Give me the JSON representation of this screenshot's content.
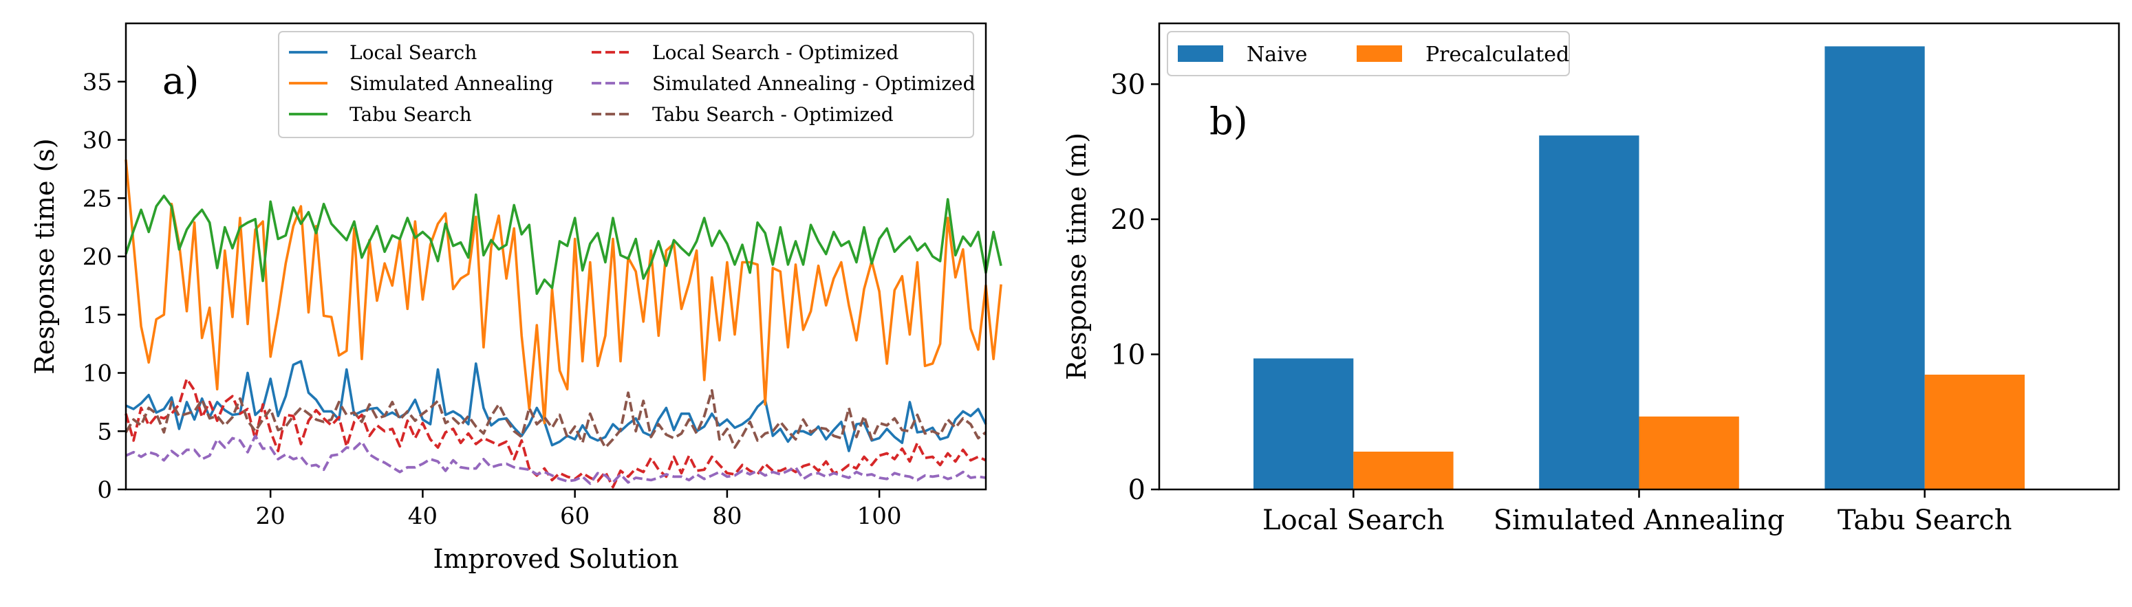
{
  "chart_data": [
    {
      "type": "line",
      "panel_label": "a)",
      "xlabel": "Improved Solution",
      "ylabel": "Response time (s)",
      "xlim": [
        1,
        114
      ],
      "ylim": [
        0,
        40
      ],
      "xticks": [
        20,
        40,
        60,
        80,
        100
      ],
      "yticks": [
        0,
        5,
        10,
        15,
        20,
        25,
        30,
        35
      ],
      "grid": false,
      "legend_position": "top-right",
      "x_start": 1,
      "series": [
        {
          "name": "Local Search",
          "color": "#1f77b4",
          "dash": "solid",
          "values": [
            7.2,
            6.9,
            7.4,
            8.1,
            6.6,
            6.9,
            7.9,
            5.2,
            7.5,
            6.0,
            7.8,
            6.2,
            7.5,
            6.8,
            6.4,
            6.5,
            10.0,
            6.4,
            7.0,
            9.5,
            6.3,
            8.0,
            10.7,
            11.0,
            8.3,
            7.7,
            6.7,
            6.7,
            6.0,
            10.3,
            6.4,
            6.7,
            6.9,
            7.0,
            6.3,
            6.6,
            6.2,
            6.6,
            7.7,
            6.0,
            5.6,
            10.3,
            6.4,
            6.7,
            6.3,
            5.6,
            10.8,
            7.0,
            5.5,
            6.0,
            6.1,
            5.3,
            4.6,
            5.6,
            7.0,
            5.8,
            3.8,
            4.1,
            4.6,
            4.3,
            5.5,
            4.5,
            4.2,
            4.5,
            5.6,
            5.0,
            5.6,
            6.1,
            4.9,
            4.6,
            6.0,
            7.0,
            5.1,
            6.5,
            6.5,
            5.0,
            5.4,
            6.5,
            5.5,
            6.0,
            5.3,
            5.6,
            6.1,
            7.1,
            7.7,
            4.6,
            5.2,
            4.1,
            5.0,
            5.0,
            4.7,
            5.4,
            4.3,
            5.1,
            5.8,
            3.3,
            5.6,
            5.7,
            4.2,
            4.4,
            5.2,
            4.5,
            4.0,
            7.5,
            4.9,
            5.0,
            5.3,
            4.3,
            4.5,
            6.0,
            6.7,
            6.3,
            6.9,
            5.6
          ]
        },
        {
          "name": "Simulated Annealing",
          "color": "#ff7f0e",
          "dash": "solid",
          "values": [
            28.3,
            21.1,
            14.0,
            10.9,
            14.6,
            15.0,
            24.5,
            21.1,
            15.3,
            22.9,
            13.0,
            15.6,
            8.6,
            20.5,
            14.8,
            23.3,
            14.2,
            22.3,
            23.0,
            11.4,
            15.1,
            19.4,
            22.6,
            24.3,
            15.2,
            22.6,
            14.9,
            14.8,
            11.5,
            11.9,
            22.4,
            11.2,
            21.4,
            16.2,
            19.4,
            17.5,
            21.5,
            15.5,
            23.0,
            16.3,
            21.0,
            22.8,
            23.7,
            17.2,
            18.1,
            18.5,
            23.4,
            12.2,
            20.8,
            23.5,
            18.1,
            22.4,
            13.2,
            6.9,
            14.1,
            5.7,
            17.2,
            10.2,
            8.6,
            21.5,
            11.0,
            19.5,
            10.6,
            13.2,
            21.5,
            11.0,
            19.9,
            18.7,
            14.4,
            20.5,
            13.2,
            20.5,
            21.1,
            15.5,
            17.7,
            20.5,
            9.4,
            18.2,
            12.8,
            19.5,
            13.3,
            19.5,
            19.5,
            19.3,
            7.3,
            19.0,
            18.7,
            12.2,
            19.3,
            13.7,
            15.3,
            19.2,
            15.8,
            18.1,
            19.5,
            15.8,
            12.8,
            17.2,
            19.6,
            17.0,
            10.8,
            17.1,
            18.3,
            13.3,
            19.5,
            10.6,
            10.8,
            12.5,
            23.3,
            18.2,
            20.6,
            13.8,
            12.0,
            17.5,
            11.2,
            17.6
          ]
        },
        {
          "name": "Tabu Search",
          "color": "#2ca02c",
          "dash": "solid",
          "values": [
            20.2,
            22.2,
            24.0,
            22.1,
            24.3,
            25.2,
            24.3,
            20.6,
            22.3,
            23.3,
            24.0,
            22.9,
            19.0,
            22.5,
            20.7,
            22.5,
            22.9,
            23.2,
            17.9,
            24.7,
            21.5,
            21.8,
            24.2,
            22.8,
            23.8,
            22.0,
            24.5,
            22.8,
            22.1,
            21.4,
            23.0,
            19.9,
            21.3,
            22.6,
            20.4,
            21.8,
            21.5,
            23.3,
            21.6,
            22.1,
            21.5,
            19.6,
            22.8,
            20.9,
            21.2,
            19.9,
            25.3,
            20.1,
            21.4,
            20.6,
            21.0,
            24.4,
            21.9,
            22.7,
            16.8,
            18.0,
            17.3,
            21.3,
            20.9,
            23.3,
            18.8,
            21.1,
            22.0,
            19.5,
            23.3,
            20.1,
            19.8,
            21.5,
            18.1,
            19.4,
            21.3,
            19.2,
            21.4,
            20.7,
            20.1,
            21.3,
            23.3,
            20.9,
            22.2,
            21.1,
            19.3,
            21.0,
            18.6,
            22.9,
            22.0,
            19.3,
            22.5,
            19.3,
            21.3,
            19.3,
            22.7,
            21.3,
            20.2,
            22.1,
            20.9,
            21.3,
            19.5,
            22.5,
            19.4,
            21.5,
            22.4,
            20.4,
            21.1,
            21.7,
            20.5,
            21.1,
            20.0,
            19.6,
            24.9,
            20.1,
            21.7,
            20.9,
            22.1,
            18.6,
            22.1,
            19.2
          ]
        },
        {
          "name": "Local Search - Optimized",
          "color": "#d62728",
          "dash": "dashed",
          "values": [
            6.5,
            4.2,
            7.0,
            5.5,
            6.3,
            6.1,
            6.5,
            7.3,
            9.5,
            8.5,
            6.2,
            7.5,
            5.9,
            7.5,
            8.0,
            6.5,
            6.9,
            4.3,
            7.3,
            5.0,
            3.3,
            6.4,
            6.3,
            3.9,
            5.9,
            6.8,
            6.1,
            5.5,
            6.2,
            3.7,
            5.8,
            6.4,
            4.6,
            5.5,
            5.0,
            5.2,
            3.7,
            5.9,
            4.4,
            5.7,
            4.3,
            3.6,
            4.9,
            5.2,
            4.0,
            4.8,
            3.9,
            4.4,
            4.1,
            3.8,
            4.1,
            2.6,
            4.2,
            1.8,
            1.2,
            1.8,
            0.8,
            1.4,
            1.1,
            0.9,
            1.4,
            1.0,
            0.7,
            1.5,
            0.2,
            1.6,
            1.1,
            1.8,
            1.5,
            2.7,
            1.7,
            1.1,
            2.8,
            1.4,
            2.9,
            1.6,
            1.7,
            2.8,
            2.1,
            1.4,
            1.3,
            2.1,
            1.6,
            1.3,
            2.2,
            1.6,
            1.6,
            1.9,
            1.5,
            2.0,
            2.2,
            1.6,
            2.4,
            1.4,
            1.6,
            2.1,
            1.8,
            2.8,
            2.1,
            2.9,
            3.1,
            2.6,
            3.5,
            2.4,
            4.0,
            2.7,
            2.8,
            2.1,
            3.1,
            2.4,
            3.4,
            2.5,
            2.8,
            2.5
          ]
        },
        {
          "name": "Simulated Annealing - Optimized",
          "color": "#9467bd",
          "dash": "dashed",
          "values": [
            2.9,
            3.2,
            2.8,
            3.2,
            3.0,
            2.5,
            3.3,
            2.8,
            3.4,
            3.4,
            2.6,
            2.9,
            4.3,
            3.6,
            4.4,
            4.2,
            3.2,
            4.6,
            3.5,
            3.6,
            2.6,
            3.0,
            2.6,
            2.8,
            2.0,
            2.1,
            1.7,
            2.9,
            3.0,
            3.6,
            3.5,
            4.1,
            3.0,
            2.6,
            2.3,
            1.9,
            1.5,
            1.9,
            1.9,
            2.2,
            2.6,
            2.4,
            1.6,
            2.5,
            1.9,
            1.8,
            1.8,
            2.6,
            1.9,
            2.1,
            2.2,
            1.9,
            1.8,
            1.7,
            1.3,
            1.5,
            1.2,
            0.9,
            0.7,
            0.8,
            1.1,
            0.5,
            1.4,
            1.2,
            0.6,
            1.3,
            0.6,
            1.0,
            0.9,
            0.8,
            1.0,
            1.3,
            1.1,
            1.1,
            0.8,
            1.3,
            0.9,
            1.2,
            1.5,
            1.1,
            1.2,
            1.6,
            1.3,
            1.6,
            1.2,
            1.5,
            1.3,
            1.6,
            1.9,
            0.9,
            1.3,
            1.4,
            1.1,
            1.4,
            1.2,
            1.0,
            1.5,
            1.2,
            1.3,
            1.0,
            0.9,
            1.4,
            1.2,
            1.1,
            0.8,
            1.2,
            1.1,
            1.2,
            0.9,
            1.1,
            1.5,
            1.0,
            1.1,
            1.0
          ]
        },
        {
          "name": "Tabu Search - Optimized",
          "color": "#8c564b",
          "dash": "dashed",
          "values": [
            4.9,
            6.0,
            5.5,
            7.0,
            6.5,
            4.9,
            7.5,
            6.3,
            6.5,
            6.7,
            7.7,
            6.1,
            6.3,
            5.5,
            6.2,
            7.8,
            5.9,
            5.0,
            6.0,
            6.9,
            5.1,
            5.4,
            6.3,
            7.0,
            6.5,
            6.0,
            5.8,
            6.0,
            7.5,
            6.4,
            6.6,
            5.8,
            7.3,
            6.1,
            6.3,
            7.5,
            6.0,
            6.7,
            5.9,
            6.5,
            7.0,
            7.6,
            5.7,
            6.1,
            5.5,
            6.3,
            5.4,
            4.8,
            6.3,
            7.3,
            6.0,
            5.0,
            4.5,
            7.0,
            5.6,
            6.2,
            5.3,
            6.4,
            4.5,
            5.4,
            4.0,
            6.5,
            4.8,
            3.6,
            4.3,
            5.1,
            8.3,
            5.0,
            7.6,
            4.5,
            5.6,
            4.7,
            4.4,
            4.8,
            6.0,
            4.8,
            6.3,
            8.5,
            4.3,
            5.2,
            3.6,
            4.6,
            5.8,
            4.2,
            4.8,
            5.0,
            5.8,
            5.0,
            4.3,
            6.0,
            4.9,
            5.3,
            5.2,
            4.6,
            4.4,
            7.0,
            4.5,
            6.3,
            4.3,
            5.7,
            5.5,
            6.1,
            5.1,
            5.0,
            6.4,
            4.8,
            5.0,
            4.7,
            6.0,
            5.3,
            6.1,
            5.6,
            4.4,
            4.9
          ]
        }
      ]
    },
    {
      "type": "bar",
      "panel_label": "b)",
      "xlabel": "",
      "ylabel": "Response time (m)",
      "ylim": [
        0,
        34.5
      ],
      "yticks": [
        0,
        10,
        20,
        30
      ],
      "grid": false,
      "legend_position": "top-left",
      "categories": [
        "Local Search",
        "Simulated Annealing",
        "Tabu Search"
      ],
      "series": [
        {
          "name": "Naive",
          "color": "#1f77b4",
          "values": [
            9.7,
            26.2,
            32.8
          ]
        },
        {
          "name": "Precalculated",
          "color": "#ff7f0e",
          "values": [
            2.8,
            5.4,
            8.5
          ]
        }
      ]
    }
  ]
}
